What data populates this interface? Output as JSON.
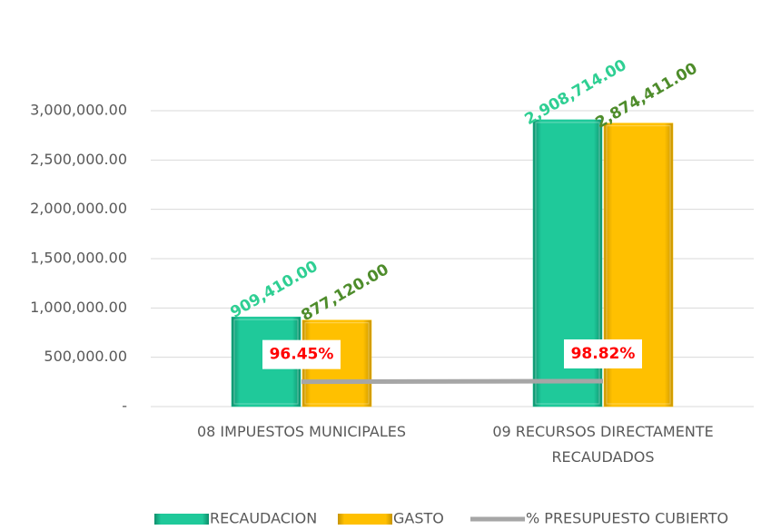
{
  "chart_data": {
    "type": "bar",
    "categories": [
      "08 IMPUESTOS MUNICIPALES",
      "09 RECURSOS DIRECTAMENTE RECAUDADOS"
    ],
    "series": [
      {
        "name": "RECAUDACION",
        "color": "#1fc99a",
        "label_color": "#2fcf93",
        "values": [
          909410,
          2908714
        ],
        "value_labels": [
          "909,410.00",
          "2,908,714.00"
        ]
      },
      {
        "name": "GASTO",
        "color": "#ffc000",
        "label_color": "#4e8c2b",
        "values": [
          877120,
          2874411
        ],
        "value_labels": [
          "877,120.00",
          "2,874,411.00"
        ]
      },
      {
        "name": "% PRESUPUESTO CUBIERTO",
        "type": "line",
        "axis": "y2",
        "color": "#a6a6a6",
        "label_color": "#ff0000",
        "values": [
          96.45,
          98.82
        ],
        "value_labels": [
          "96.45%",
          "98.82%"
        ]
      }
    ],
    "ylim": [
      0,
      3000000
    ],
    "yticks": [
      {
        "value": 0,
        "label": "-"
      },
      {
        "value": 500000,
        "label": "500,000.00"
      },
      {
        "value": 1000000,
        "label": "1,000,000.00"
      },
      {
        "value": 1500000,
        "label": "1,500,000.00"
      },
      {
        "value": 2000000,
        "label": "2,000,000.00"
      },
      {
        "value": 2500000,
        "label": "2,500,000.00"
      },
      {
        "value": 3000000,
        "label": "3,000,000.00"
      }
    ],
    "y2lim": [
      0,
      1150
    ],
    "grid": true,
    "legend": "bottom"
  }
}
